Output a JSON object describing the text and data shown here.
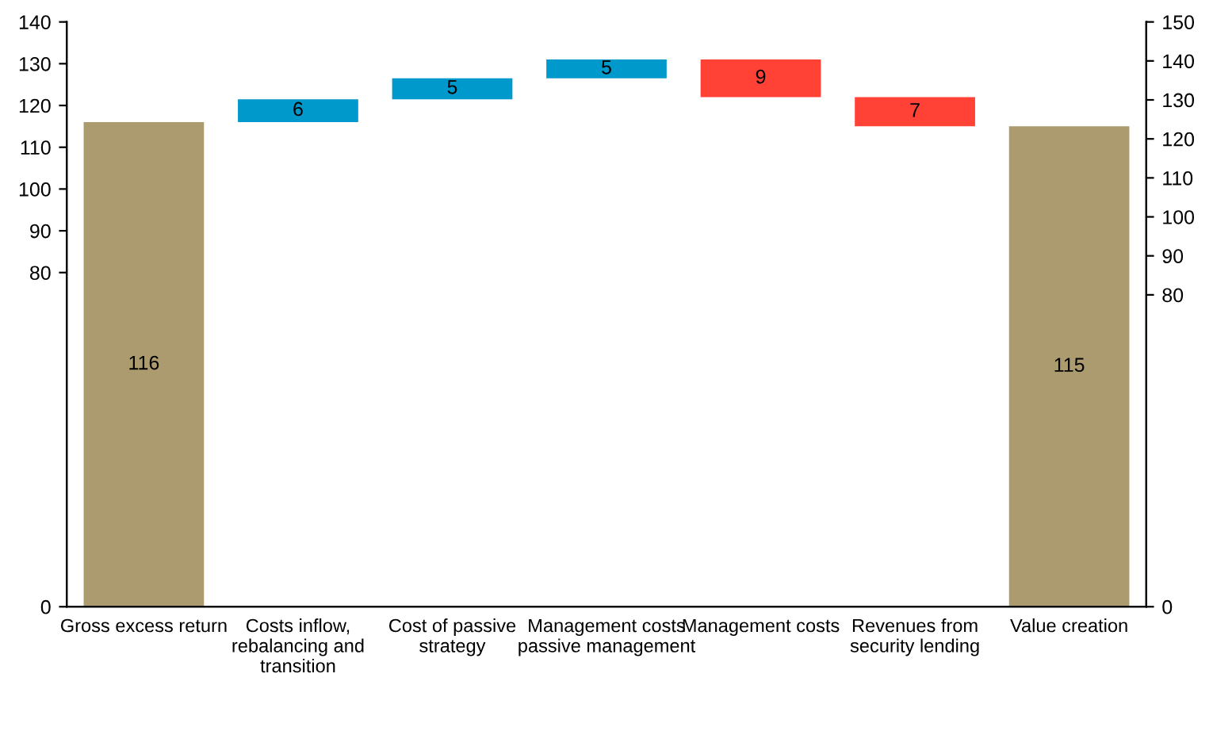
{
  "chart_data": {
    "type": "bar",
    "categories": [
      "Gross excess return",
      "Costs inflow, rebalancing and transition",
      "Cost of passive strategy",
      "Management costs passive management",
      "Management costs",
      "Revenues from security lending",
      "Value creation"
    ],
    "base": [
      0,
      116,
      121.5,
      126.5,
      131,
      122,
      0
    ],
    "values": [
      116,
      5.5,
      5,
      4.5,
      -9,
      -7,
      115
    ],
    "colors": [
      "#ab9b6e",
      "#0099cc",
      "#0099cc",
      "#0099cc",
      "#ff4136",
      "#ff4136",
      "#ab9b6e"
    ],
    "value_labels": [
      "116",
      "6",
      "5",
      "5",
      "9",
      "7",
      "115"
    ],
    "ylim": [
      0,
      140
    ],
    "yticks": [
      0,
      80,
      90,
      100,
      110,
      120,
      130,
      140
    ],
    "y2lim": [
      0,
      150
    ],
    "y2ticks": [
      0,
      80,
      90,
      100,
      110,
      120,
      130,
      140,
      150
    ],
    "grid": false,
    "legend": false
  }
}
